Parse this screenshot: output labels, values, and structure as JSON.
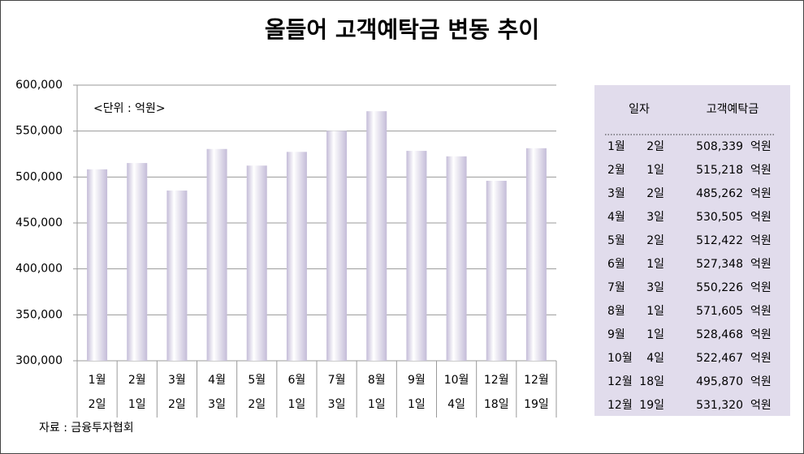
{
  "chart_data": {
    "type": "bar",
    "title": "올들어 고객예탁금 변동 추이",
    "annotation": "<단위 : 억원>",
    "source": "자료 : 금융투자협회",
    "categories": [
      [
        "1월",
        "2일"
      ],
      [
        "2월",
        "1일"
      ],
      [
        "3월",
        "2일"
      ],
      [
        "4월",
        "3일"
      ],
      [
        "5월",
        "2일"
      ],
      [
        "6월",
        "1일"
      ],
      [
        "7월",
        "3일"
      ],
      [
        "8월",
        "1일"
      ],
      [
        "9월",
        "1일"
      ],
      [
        "10월",
        "4일"
      ],
      [
        "12월",
        "18일"
      ],
      [
        "12월",
        "19일"
      ]
    ],
    "values": [
      508339,
      515218,
      485262,
      530505,
      512422,
      527348,
      550226,
      571605,
      528468,
      522467,
      495870,
      531320
    ],
    "color": "#c4bcd8",
    "ylim": [
      300000,
      600000
    ],
    "yticks": [
      {
        "value": 300000,
        "label": "300,000"
      },
      {
        "value": 350000,
        "label": "350,000"
      },
      {
        "value": 400000,
        "label": "400,000"
      },
      {
        "value": 450000,
        "label": "450,000"
      },
      {
        "value": 500000,
        "label": "500,000"
      },
      {
        "value": 550000,
        "label": "550,000"
      },
      {
        "value": 600000,
        "label": "600,000"
      }
    ],
    "grid": true
  },
  "table": {
    "headers": [
      "일자",
      "고객예탁금"
    ],
    "rows": [
      [
        "1월",
        "2일",
        "508,339",
        "억원"
      ],
      [
        "2월",
        "1일",
        "515,218",
        "억원"
      ],
      [
        "3월",
        "2일",
        "485,262",
        "억원"
      ],
      [
        "4월",
        "3일",
        "530,505",
        "억원"
      ],
      [
        "5월",
        "2일",
        "512,422",
        "억원"
      ],
      [
        "6월",
        "1일",
        "527,348",
        "억원"
      ],
      [
        "7월",
        "3일",
        "550,226",
        "억원"
      ],
      [
        "8월",
        "1일",
        "571,605",
        "억원"
      ],
      [
        "9월",
        "1일",
        "528,468",
        "억원"
      ],
      [
        "10월",
        "4일",
        "522,467",
        "억원"
      ],
      [
        "12월",
        "18일",
        "495,870",
        "억원"
      ],
      [
        "12월",
        "19일",
        "531,320",
        "억원"
      ]
    ]
  }
}
